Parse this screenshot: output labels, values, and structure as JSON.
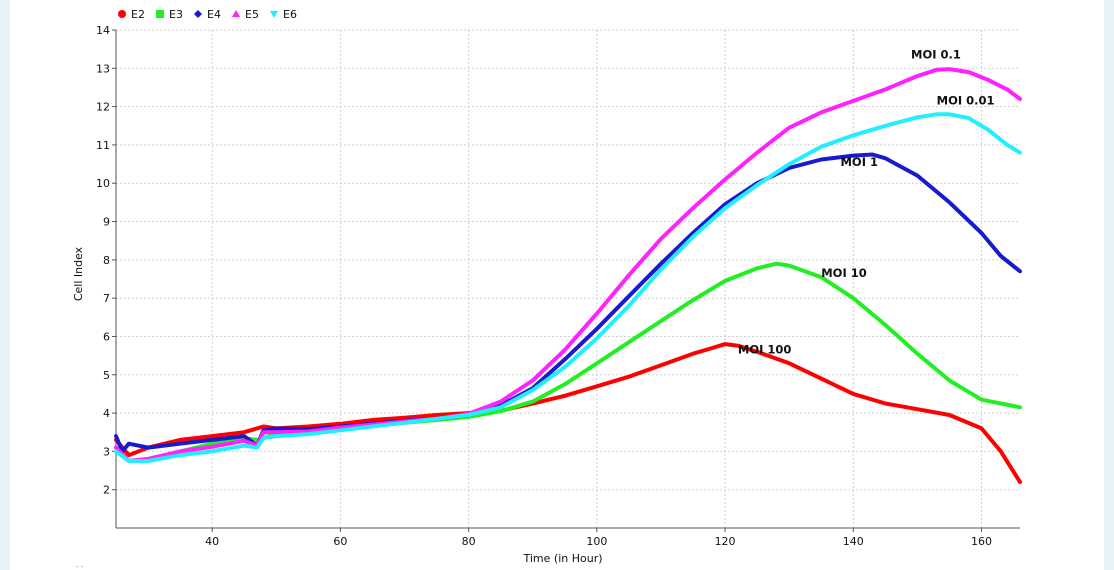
{
  "chart_data": {
    "type": "line",
    "title": "",
    "xlabel": "Time (in Hour)",
    "ylabel": "Cell Index",
    "xlim": [
      25,
      166
    ],
    "ylim": [
      1,
      14
    ],
    "x_ticks": [
      40,
      60,
      80,
      100,
      120,
      140,
      160
    ],
    "y_ticks": [
      2,
      3,
      4,
      5,
      6,
      7,
      8,
      9,
      10,
      11,
      12,
      13,
      14
    ],
    "grid": true,
    "grid_style": "dotted",
    "legend_position": "top-left",
    "footer_note": "- -",
    "series": [
      {
        "name": "E2",
        "color": "#ff0000",
        "marker": "circle",
        "annotation": "MOI 100",
        "points": [
          [
            25,
            3.3
          ],
          [
            27,
            2.9
          ],
          [
            30,
            3.1
          ],
          [
            35,
            3.3
          ],
          [
            40,
            3.4
          ],
          [
            45,
            3.5
          ],
          [
            48,
            3.65
          ],
          [
            50,
            3.6
          ],
          [
            55,
            3.65
          ],
          [
            60,
            3.72
          ],
          [
            65,
            3.82
          ],
          [
            70,
            3.88
          ],
          [
            75,
            3.95
          ],
          [
            80,
            4.0
          ],
          [
            85,
            4.06
          ],
          [
            90,
            4.25
          ],
          [
            95,
            4.45
          ],
          [
            100,
            4.7
          ],
          [
            105,
            4.95
          ],
          [
            110,
            5.25
          ],
          [
            115,
            5.55
          ],
          [
            118,
            5.7
          ],
          [
            120,
            5.8
          ],
          [
            122,
            5.76
          ],
          [
            125,
            5.6
          ],
          [
            130,
            5.3
          ],
          [
            135,
            4.9
          ],
          [
            140,
            4.5
          ],
          [
            145,
            4.25
          ],
          [
            150,
            4.1
          ],
          [
            155,
            3.95
          ],
          [
            160,
            3.6
          ],
          [
            163,
            3.0
          ],
          [
            166,
            2.2
          ]
        ]
      },
      {
        "name": "E3",
        "color": "#22ee22",
        "marker": "square",
        "annotation": "MOI 10",
        "points": [
          [
            25,
            3.1
          ],
          [
            27,
            2.75
          ],
          [
            30,
            2.8
          ],
          [
            35,
            3.0
          ],
          [
            40,
            3.2
          ],
          [
            45,
            3.35
          ],
          [
            47,
            3.3
          ],
          [
            50,
            3.45
          ],
          [
            55,
            3.5
          ],
          [
            60,
            3.6
          ],
          [
            65,
            3.68
          ],
          [
            70,
            3.75
          ],
          [
            75,
            3.82
          ],
          [
            80,
            3.9
          ],
          [
            85,
            4.05
          ],
          [
            90,
            4.3
          ],
          [
            95,
            4.75
          ],
          [
            100,
            5.3
          ],
          [
            105,
            5.85
          ],
          [
            110,
            6.4
          ],
          [
            115,
            6.95
          ],
          [
            120,
            7.45
          ],
          [
            125,
            7.78
          ],
          [
            128,
            7.9
          ],
          [
            130,
            7.85
          ],
          [
            135,
            7.55
          ],
          [
            140,
            7.0
          ],
          [
            145,
            6.3
          ],
          [
            150,
            5.55
          ],
          [
            155,
            4.85
          ],
          [
            160,
            4.35
          ],
          [
            166,
            4.15
          ]
        ]
      },
      {
        "name": "E4",
        "color": "#1a1acc",
        "marker": "diamond",
        "annotation": "MOI 1",
        "points": [
          [
            25,
            3.4
          ],
          [
            26,
            3.0
          ],
          [
            27,
            3.2
          ],
          [
            30,
            3.1
          ],
          [
            35,
            3.2
          ],
          [
            40,
            3.3
          ],
          [
            45,
            3.4
          ],
          [
            47,
            3.15
          ],
          [
            48,
            3.55
          ],
          [
            50,
            3.6
          ],
          [
            55,
            3.58
          ],
          [
            60,
            3.65
          ],
          [
            65,
            3.72
          ],
          [
            70,
            3.8
          ],
          [
            75,
            3.85
          ],
          [
            80,
            3.95
          ],
          [
            85,
            4.2
          ],
          [
            90,
            4.65
          ],
          [
            95,
            5.4
          ],
          [
            100,
            6.2
          ],
          [
            105,
            7.05
          ],
          [
            110,
            7.9
          ],
          [
            115,
            8.7
          ],
          [
            120,
            9.45
          ],
          [
            125,
            10.0
          ],
          [
            130,
            10.4
          ],
          [
            135,
            10.62
          ],
          [
            140,
            10.72
          ],
          [
            143,
            10.75
          ],
          [
            145,
            10.65
          ],
          [
            150,
            10.2
          ],
          [
            155,
            9.5
          ],
          [
            160,
            8.7
          ],
          [
            163,
            8.1
          ],
          [
            166,
            7.7
          ]
        ]
      },
      {
        "name": "E5",
        "color": "#ff22ff",
        "marker": "triangle-up",
        "annotation": "MOI 0.1",
        "points": [
          [
            25,
            3.1
          ],
          [
            27,
            2.75
          ],
          [
            30,
            2.8
          ],
          [
            35,
            3.0
          ],
          [
            40,
            3.12
          ],
          [
            45,
            3.28
          ],
          [
            47,
            3.15
          ],
          [
            48,
            3.5
          ],
          [
            50,
            3.5
          ],
          [
            55,
            3.52
          ],
          [
            60,
            3.62
          ],
          [
            65,
            3.7
          ],
          [
            70,
            3.78
          ],
          [
            75,
            3.85
          ],
          [
            80,
            3.98
          ],
          [
            85,
            4.3
          ],
          [
            90,
            4.85
          ],
          [
            95,
            5.65
          ],
          [
            100,
            6.6
          ],
          [
            105,
            7.6
          ],
          [
            110,
            8.55
          ],
          [
            115,
            9.35
          ],
          [
            120,
            10.1
          ],
          [
            125,
            10.8
          ],
          [
            130,
            11.45
          ],
          [
            135,
            11.85
          ],
          [
            140,
            12.15
          ],
          [
            145,
            12.45
          ],
          [
            150,
            12.8
          ],
          [
            153,
            12.96
          ],
          [
            155,
            12.98
          ],
          [
            158,
            12.9
          ],
          [
            161,
            12.7
          ],
          [
            164,
            12.45
          ],
          [
            166,
            12.2
          ]
        ]
      },
      {
        "name": "E6",
        "color": "#22eeff",
        "marker": "triangle-down",
        "annotation": "MOI 0.01",
        "points": [
          [
            25,
            3.0
          ],
          [
            27,
            2.75
          ],
          [
            30,
            2.75
          ],
          [
            35,
            2.9
          ],
          [
            40,
            3.0
          ],
          [
            45,
            3.15
          ],
          [
            47,
            3.1
          ],
          [
            48,
            3.35
          ],
          [
            50,
            3.4
          ],
          [
            55,
            3.45
          ],
          [
            60,
            3.55
          ],
          [
            65,
            3.65
          ],
          [
            70,
            3.75
          ],
          [
            75,
            3.85
          ],
          [
            80,
            3.95
          ],
          [
            85,
            4.15
          ],
          [
            90,
            4.6
          ],
          [
            95,
            5.2
          ],
          [
            100,
            5.95
          ],
          [
            105,
            6.8
          ],
          [
            110,
            7.75
          ],
          [
            115,
            8.6
          ],
          [
            120,
            9.35
          ],
          [
            125,
            9.95
          ],
          [
            130,
            10.5
          ],
          [
            135,
            10.95
          ],
          [
            140,
            11.25
          ],
          [
            145,
            11.5
          ],
          [
            150,
            11.72
          ],
          [
            153,
            11.8
          ],
          [
            155,
            11.8
          ],
          [
            158,
            11.7
          ],
          [
            161,
            11.4
          ],
          [
            164,
            11.0
          ],
          [
            166,
            10.8
          ]
        ]
      }
    ]
  }
}
